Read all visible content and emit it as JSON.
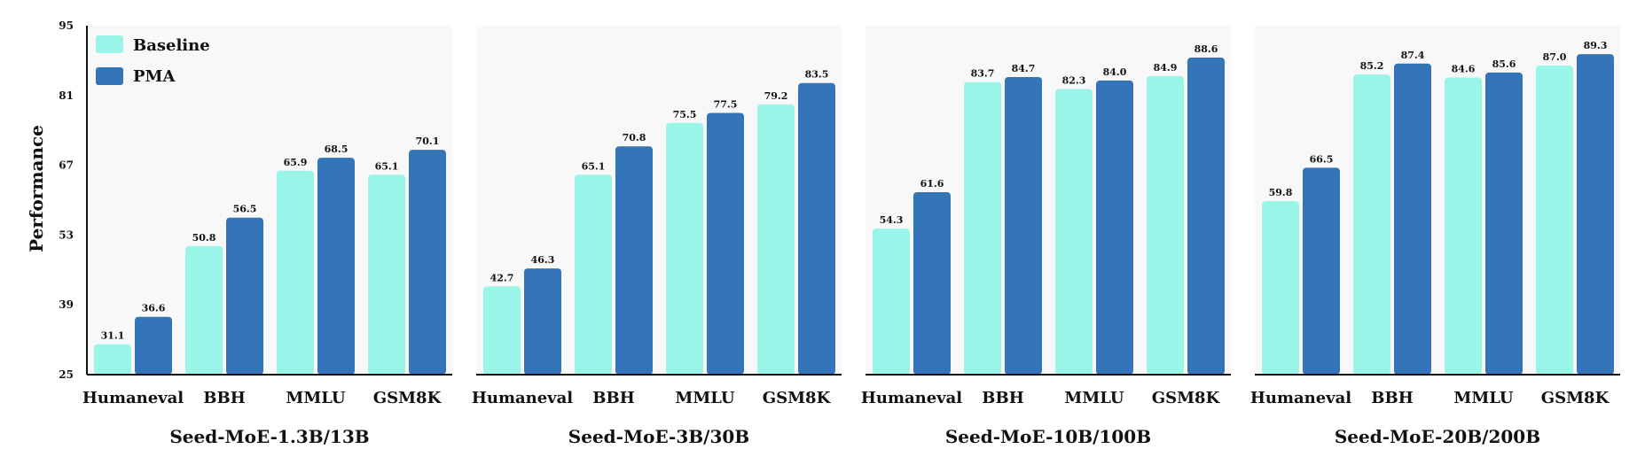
{
  "chart_data": {
    "type": "bar",
    "ylabel": "Performance",
    "ylim": [
      25,
      95
    ],
    "yticks": [
      "25",
      "39",
      "53",
      "67",
      "81",
      "95"
    ],
    "grid": false,
    "legend_placement": "top-left",
    "colors": {
      "Baseline": "#98F5E8",
      "PMA": "#3474B8",
      "panel_background": "#F8F8F8"
    },
    "series_names": [
      "Baseline",
      "PMA"
    ],
    "panels": [
      {
        "title": "Seed-MoE-1.3B/13B",
        "categories": [
          "Humaneval",
          "BBH",
          "MMLU",
          "GSM8K"
        ],
        "series": [
          {
            "name": "Baseline",
            "values": [
              31.1,
              50.8,
              65.9,
              65.1
            ]
          },
          {
            "name": "PMA",
            "values": [
              36.6,
              56.5,
              68.5,
              70.1
            ]
          }
        ]
      },
      {
        "title": "Seed-MoE-3B/30B",
        "categories": [
          "Humaneval",
          "BBH",
          "MMLU",
          "GSM8K"
        ],
        "series": [
          {
            "name": "Baseline",
            "values": [
              42.7,
              65.1,
              75.5,
              79.2
            ]
          },
          {
            "name": "PMA",
            "values": [
              46.3,
              70.8,
              77.5,
              83.5
            ]
          }
        ]
      },
      {
        "title": "Seed-MoE-10B/100B",
        "categories": [
          "Humaneval",
          "BBH",
          "MMLU",
          "GSM8K"
        ],
        "series": [
          {
            "name": "Baseline",
            "values": [
              54.3,
              83.7,
              82.3,
              84.9
            ]
          },
          {
            "name": "PMA",
            "values": [
              61.6,
              84.7,
              84.0,
              88.6
            ]
          }
        ]
      },
      {
        "title": "Seed-MoE-20B/200B",
        "categories": [
          "Humaneval",
          "BBH",
          "MMLU",
          "GSM8K"
        ],
        "series": [
          {
            "name": "Baseline",
            "values": [
              59.8,
              85.2,
              84.6,
              87.0
            ]
          },
          {
            "name": "PMA",
            "values": [
              66.5,
              87.4,
              85.6,
              89.3
            ]
          }
        ]
      }
    ]
  }
}
